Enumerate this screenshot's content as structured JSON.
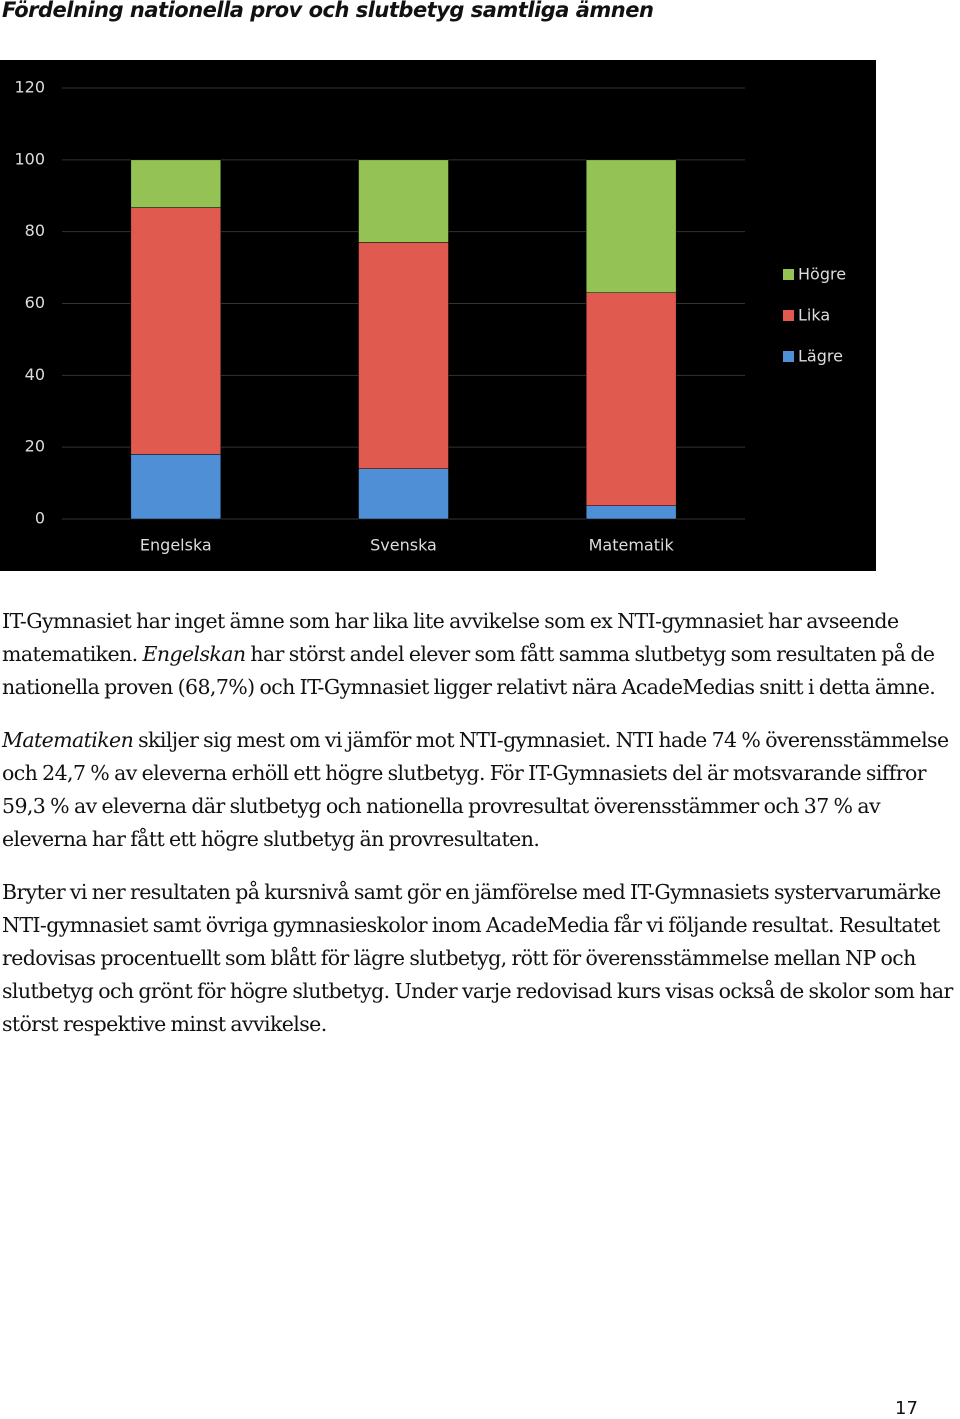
{
  "heading": "Fördelning nationella prov och slutbetyg samtliga ämnen",
  "chart_data": {
    "type": "stacked_bar",
    "categories": [
      "Engelska",
      "Svenska",
      "Matematik"
    ],
    "series": [
      {
        "name": "Lägre",
        "color": "#4f8fd6",
        "values": [
          18,
          14,
          3.7
        ]
      },
      {
        "name": "Lika",
        "color": "#e05a50",
        "values": [
          68.7,
          63,
          59.3
        ]
      },
      {
        "name": "Högre",
        "color": "#94c255",
        "values": [
          13.3,
          23,
          37
        ]
      }
    ],
    "ylim": [
      0,
      120
    ],
    "yticks": [
      0,
      20,
      40,
      60,
      80,
      100,
      120
    ],
    "grid": true,
    "legend": "right"
  },
  "paragraphs": [
    [
      {
        "text": "IT-Gymnasiet har inget ämne som har lika lite avvikelse som ex NTI-gymnasiet har avseende matematiken. "
      },
      {
        "text": "Engelskan",
        "italic": true
      },
      {
        "text": " har störst andel elever som fått samma slutbetyg som resultaten på de nationella proven (68,7%) och IT-Gymnasiet ligger relativt nära AcadeMedias snitt i detta ämne."
      }
    ],
    [
      {
        "text": "Matematiken",
        "italic": true
      },
      {
        "text": " skiljer sig mest om vi jämför mot NTI-gymnasiet. NTI hade 74 % överensstämmelse och 24,7 % av eleverna erhöll ett högre slutbetyg. För IT-Gymnasiets del är motsvarande siffror 59,3 % av eleverna där slutbetyg och nationella provresultat överensstämmer och  37 % av eleverna har fått  ett högre slutbetyg än provresultaten."
      }
    ],
    [
      {
        "text": "Bryter vi ner resultaten på kursnivå samt gör en jämförelse med IT-Gymnasiets systervarumärke NTI-gymnasiet samt övriga gymnasieskolor inom AcadeMedia får vi följande resultat. Resultatet redovisas procentuellt som blått för lägre slutbetyg, rött för överensstämmelse mellan NP och slutbetyg och grönt för högre slutbetyg.  Under varje redovisad kurs visas också de skolor som har störst respektive minst avvikelse."
      }
    ]
  ],
  "page_number": "17"
}
